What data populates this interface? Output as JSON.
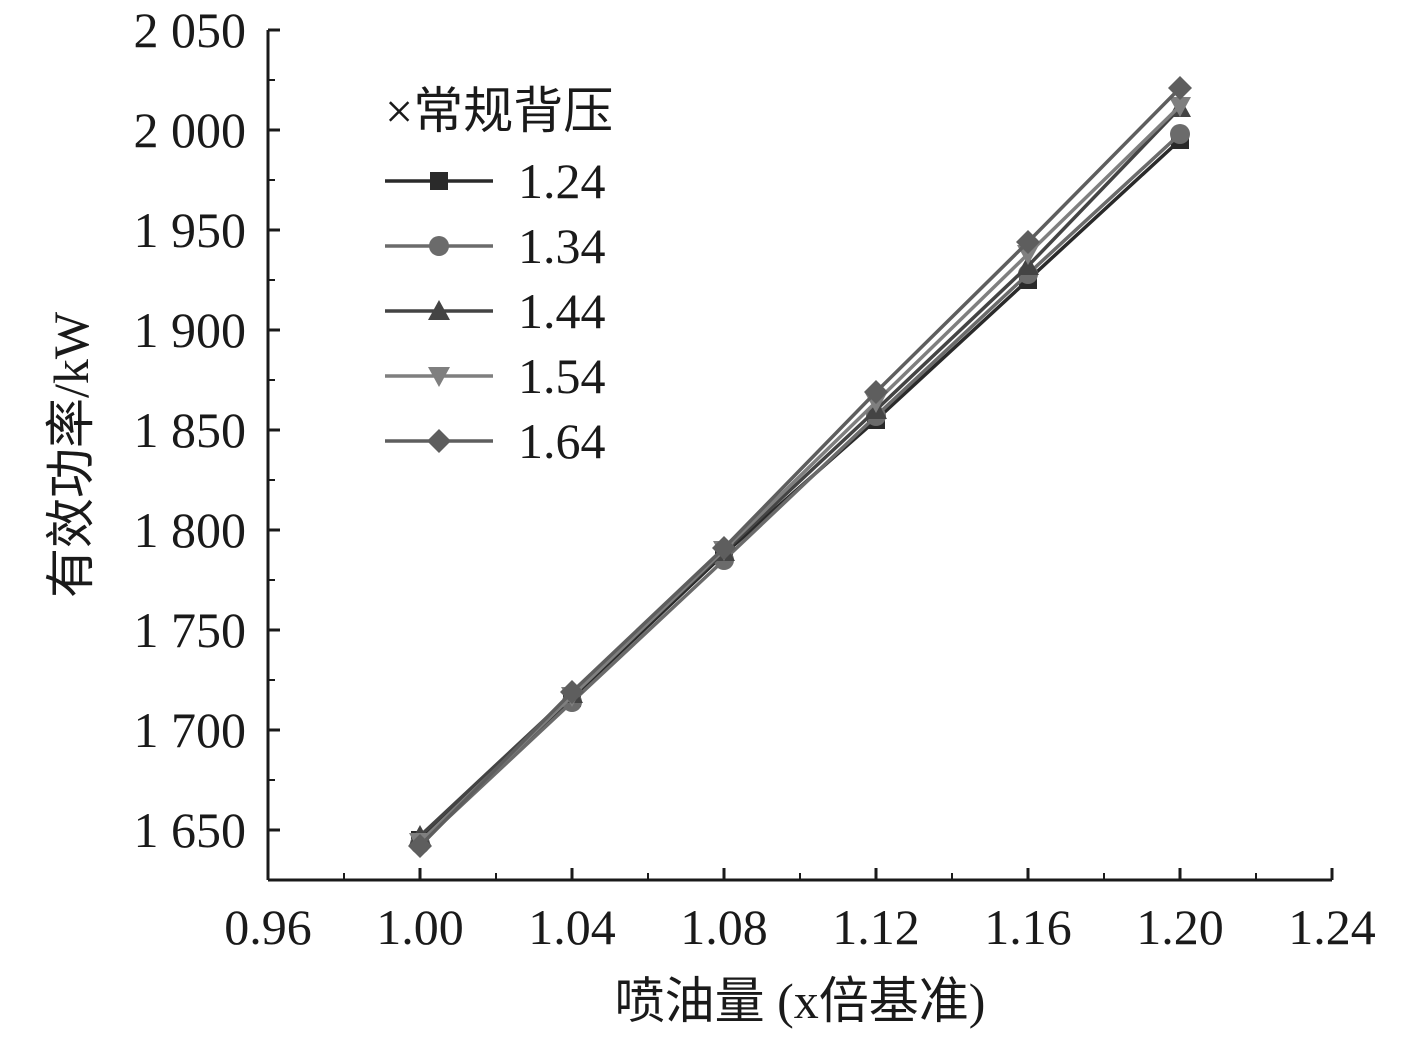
{
  "chart_data": {
    "type": "line",
    "title": "",
    "xlabel": "喷油量 (x倍基准)",
    "ylabel": "有效功率/kW",
    "xlim": [
      0.96,
      1.24
    ],
    "ylim": [
      1625,
      2050
    ],
    "x_ticks": [
      "0.96",
      "1.00",
      "1.04",
      "1.08",
      "1.12",
      "1.16",
      "1.20",
      "1.24"
    ],
    "y_ticks": [
      "1 650",
      "1 700",
      "1 750",
      "1 800",
      "1 850",
      "1 900",
      "1 950",
      "2 000",
      "2 050"
    ],
    "legend_title": "×常规背压",
    "legend_position": "top-left",
    "grid": false,
    "x": [
      1.0,
      1.04,
      1.08,
      1.12,
      1.16,
      1.2
    ],
    "series": [
      {
        "name": "1.24",
        "marker": "square",
        "color": "#2a2a2a",
        "values": [
          1645,
          1716,
          1788,
          1855,
          1925,
          1995
        ]
      },
      {
        "name": "1.34",
        "marker": "circle",
        "color": "#6b6b6b",
        "values": [
          1643,
          1714,
          1785,
          1857,
          1928,
          1998
        ]
      },
      {
        "name": "1.44",
        "marker": "triangle-up",
        "color": "#444444",
        "values": [
          1647,
          1718,
          1789,
          1860,
          1932,
          2011
        ]
      },
      {
        "name": "1.54",
        "marker": "triangle-down",
        "color": "#7f7f7f",
        "values": [
          1644,
          1717,
          1790,
          1864,
          1938,
          2012
        ]
      },
      {
        "name": "1.64",
        "marker": "diamond",
        "color": "#5e5e5e",
        "values": [
          1642,
          1719,
          1791,
          1869,
          1944,
          2021
        ]
      }
    ]
  }
}
